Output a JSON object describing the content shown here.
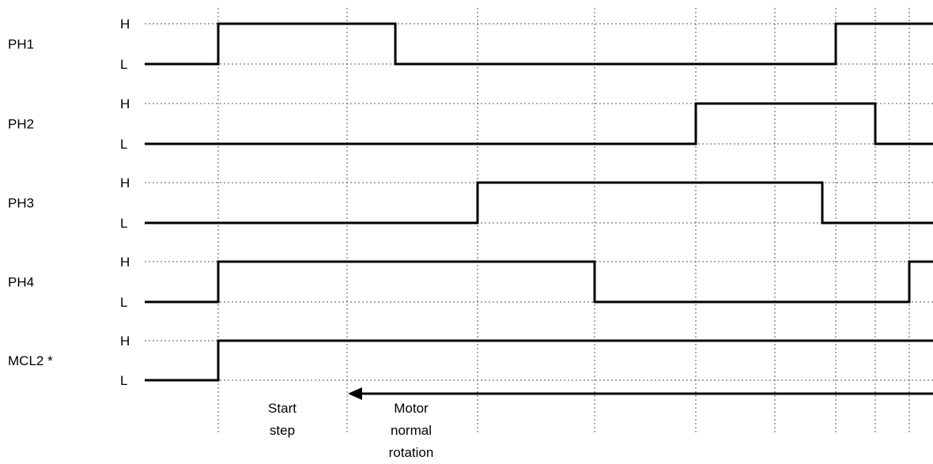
{
  "chart_data": {
    "type": "timing-diagram",
    "level_high_label": "H",
    "level_low_label": "L",
    "signals": [
      {
        "name": "PH1",
        "initial": "L",
        "levels": [
          "L",
          "H",
          "H",
          "L",
          "L",
          "L",
          "L",
          "L",
          "L",
          "H",
          "H",
          "H"
        ]
      },
      {
        "name": "PH2",
        "initial": "L",
        "levels": [
          "L",
          "L",
          "L",
          "L",
          "L",
          "L",
          "H",
          "H",
          "H",
          "H",
          "L",
          "L"
        ]
      },
      {
        "name": "PH3",
        "initial": "L",
        "levels": [
          "L",
          "L",
          "L",
          "L",
          "H",
          "H",
          "H",
          "H",
          "L",
          "L",
          "L",
          "L"
        ]
      },
      {
        "name": "PH4",
        "initial": "L",
        "levels": [
          "L",
          "H",
          "H",
          "H",
          "H",
          "L",
          "L",
          "L",
          "L",
          "L",
          "L",
          "H"
        ]
      },
      {
        "name": "MCL2 *",
        "initial": "L",
        "levels": [
          "L",
          "H",
          "H",
          "H",
          "H",
          "H",
          "H",
          "H",
          "H",
          "H",
          "H",
          "H"
        ]
      }
    ],
    "annotations": {
      "start_step": [
        "Start",
        "step"
      ],
      "motor_normal_rotation": [
        "Motor",
        "normal",
        "rotation"
      ]
    }
  }
}
